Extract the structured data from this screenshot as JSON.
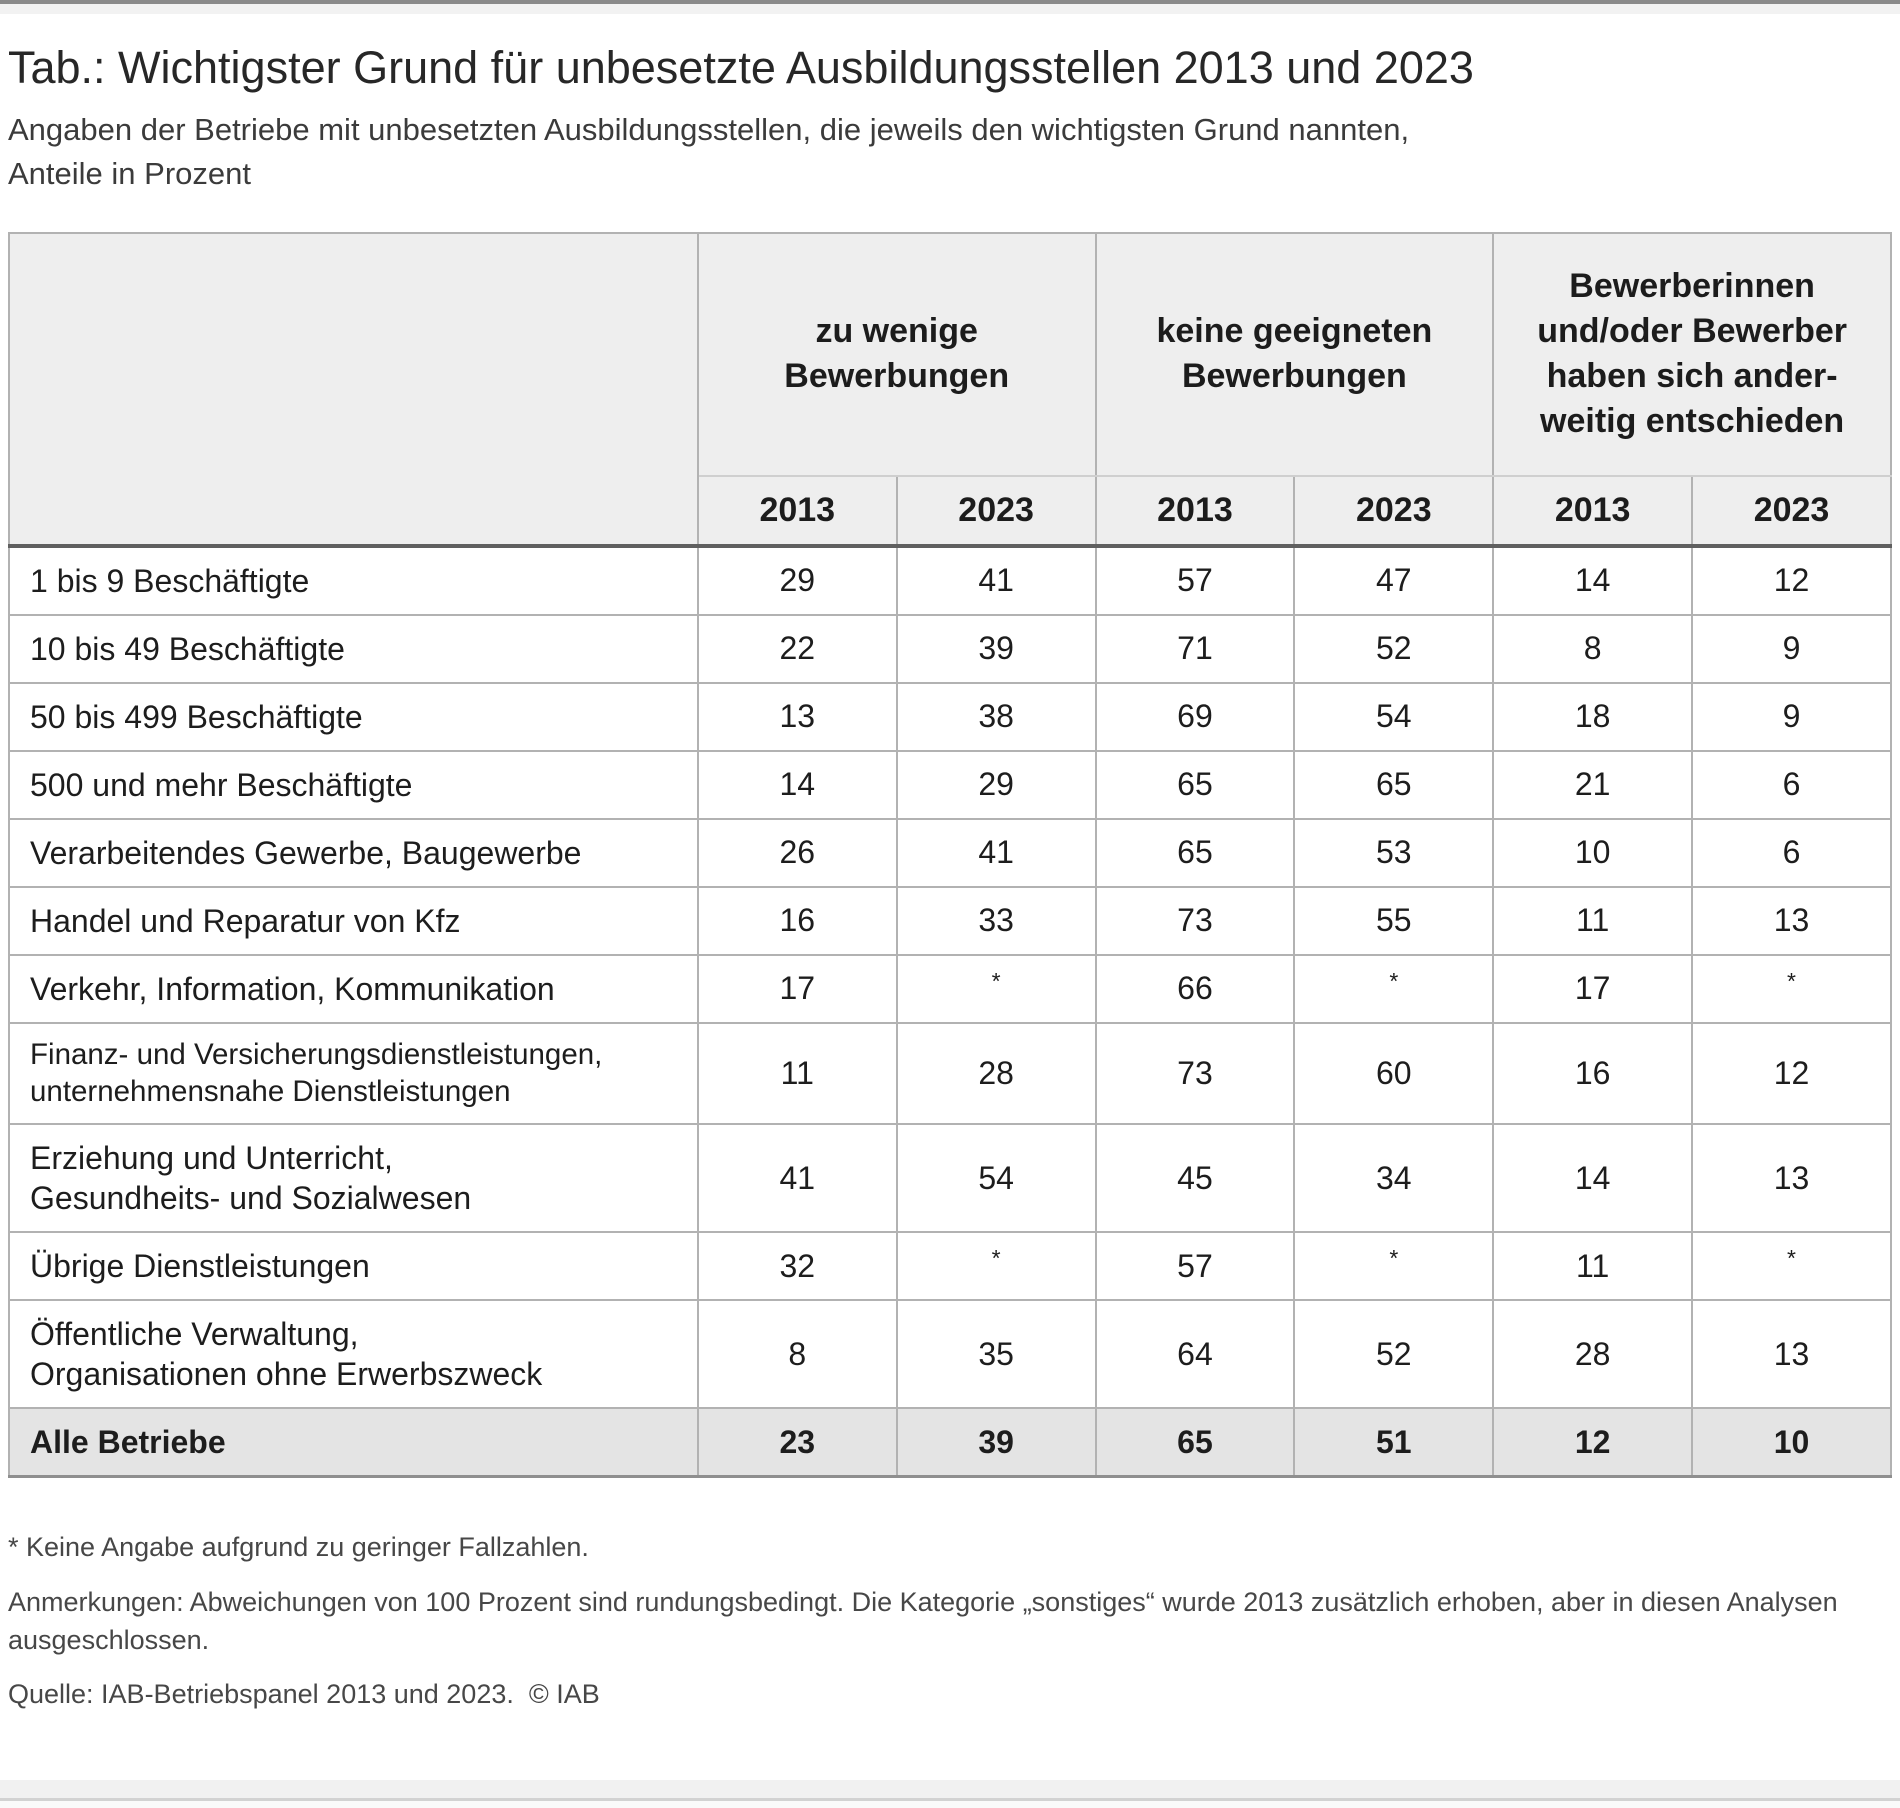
{
  "page": {
    "title": "Tab.: Wichtigster Grund für unbesetzte Ausbildungsstellen 2013 und 2023",
    "subtitle": "Angaben der Betriebe mit unbesetzten Ausbildungsstellen, die jeweils den wichtigsten Grund nannten,\nAnteile in Prozent"
  },
  "chart_data": {
    "type": "table",
    "title": "Tab.: Wichtigster Grund für unbesetzte Ausbildungsstellen 2013 und 2023",
    "subtitle": "Angaben der Betriebe mit unbesetzten Ausbildungsstellen, die jeweils den wichtigsten Grund nannten, Anteile in Prozent",
    "unit": "Anteile in Prozent",
    "column_groups": [
      {
        "label": "zu wenige\nBewerbungen",
        "years": [
          "2013",
          "2023"
        ]
      },
      {
        "label": "keine geeigneten\nBewerbungen",
        "years": [
          "2013",
          "2023"
        ]
      },
      {
        "label": "Bewerberinnen\nund/oder Bewerber\nhaben sich ander-\nweitig entschieden",
        "years": [
          "2013",
          "2023"
        ]
      }
    ],
    "rows": [
      {
        "label": "1 bis 9 Beschäftigte",
        "values": [
          "29",
          "41",
          "57",
          "47",
          "14",
          "12"
        ]
      },
      {
        "label": "10 bis 49 Beschäftigte",
        "values": [
          "22",
          "39",
          "71",
          "52",
          "8",
          "9"
        ]
      },
      {
        "label": "50 bis 499 Beschäftigte",
        "values": [
          "13",
          "38",
          "69",
          "54",
          "18",
          "9"
        ]
      },
      {
        "label": "500 und mehr Beschäftigte",
        "values": [
          "14",
          "29",
          "65",
          "65",
          "21",
          "6"
        ]
      },
      {
        "label": "Verarbeitendes Gewerbe, Baugewerbe",
        "values": [
          "26",
          "41",
          "65",
          "53",
          "10",
          "6"
        ]
      },
      {
        "label": "Handel und Reparatur von Kfz",
        "values": [
          "16",
          "33",
          "73",
          "55",
          "11",
          "13"
        ]
      },
      {
        "label": "Verkehr, Information, Kommunikation",
        "values": [
          "17",
          "*",
          "66",
          "*",
          "17",
          "*"
        ]
      },
      {
        "label": "Finanz- und Versicherungsdienstleistungen,\nunternehmensnahe Dienstleistungen",
        "values": [
          "11",
          "28",
          "73",
          "60",
          "16",
          "12"
        ],
        "small_label": true
      },
      {
        "label": "Erziehung und Unterricht,\nGesundheits- und Sozialwesen",
        "values": [
          "41",
          "54",
          "45",
          "34",
          "14",
          "13"
        ]
      },
      {
        "label": "Übrige Dienstleistungen",
        "values": [
          "32",
          "*",
          "57",
          "*",
          "11",
          "*"
        ]
      },
      {
        "label": "Öffentliche Verwaltung,\nOrganisationen ohne Erwerbszweck",
        "values": [
          "8",
          "35",
          "64",
          "52",
          "28",
          "13"
        ]
      },
      {
        "label": "Alle Betriebe",
        "values": [
          "23",
          "39",
          "65",
          "51",
          "12",
          "10"
        ],
        "total": true
      }
    ],
    "footnotes": [
      "* Keine Angabe aufgrund zu geringer Fallzahlen.",
      "Anmerkungen: Abweichungen von 100 Prozent sind rundungsbedingt. Die Kategorie „sonstiges“ wurde 2013 zusätzlich erhoben, aber in diesen Analysen ausgeschlossen.",
      "Quelle: IAB-Betriebspanel 2013 und 2023.  © IAB"
    ]
  }
}
